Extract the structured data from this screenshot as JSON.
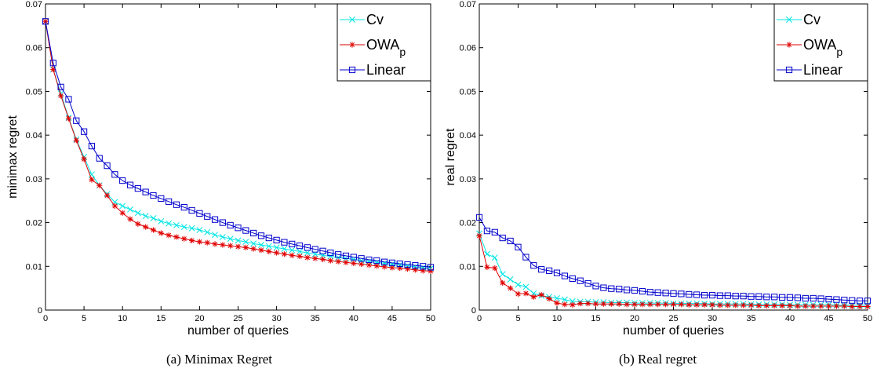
{
  "chart_data": [
    {
      "type": "line",
      "caption": "(a) Minimax Regret",
      "xlabel": "number of queries",
      "ylabel": "minimax regret",
      "xlim": [
        0,
        50
      ],
      "ylim": [
        0,
        0.07
      ],
      "xticks": [
        "0",
        "5",
        "10",
        "15",
        "20",
        "25",
        "30",
        "35",
        "40",
        "45",
        "50"
      ],
      "yticks": [
        "0",
        "0.01",
        "0.02",
        "0.03",
        "0.04",
        "0.05",
        "0.06",
        "0.07"
      ],
      "grid": false,
      "legend_position": "top-right",
      "x": [
        0,
        1,
        2,
        3,
        4,
        5,
        6,
        7,
        8,
        9,
        10,
        11,
        12,
        13,
        14,
        15,
        16,
        17,
        18,
        19,
        20,
        21,
        22,
        23,
        24,
        25,
        26,
        27,
        28,
        29,
        30,
        31,
        32,
        33,
        34,
        35,
        36,
        37,
        38,
        39,
        40,
        41,
        42,
        43,
        44,
        45,
        46,
        47,
        48,
        49,
        50
      ],
      "series": [
        {
          "name": "Cv",
          "color": "#00e5e5",
          "marker": "x",
          "values": [
            0.066,
            0.055,
            0.0495,
            0.044,
            0.039,
            0.035,
            0.031,
            0.0285,
            0.0265,
            0.0247,
            0.0238,
            0.023,
            0.0222,
            0.0215,
            0.021,
            0.0203,
            0.0198,
            0.0194,
            0.019,
            0.0187,
            0.0183,
            0.0178,
            0.0172,
            0.0167,
            0.0163,
            0.0159,
            0.0156,
            0.0152,
            0.0149,
            0.0146,
            0.0143,
            0.014,
            0.0137,
            0.0134,
            0.0131,
            0.0128,
            0.0125,
            0.0123,
            0.012,
            0.0118,
            0.0116,
            0.0113,
            0.0111,
            0.0109,
            0.0107,
            0.0105,
            0.0103,
            0.0101,
            0.0099,
            0.0097,
            0.0095
          ]
        },
        {
          "name": "OWA",
          "name_sub": "p",
          "color": "#e00000",
          "marker": "*",
          "values": [
            0.066,
            0.055,
            0.049,
            0.0438,
            0.0388,
            0.0345,
            0.0298,
            0.0285,
            0.0262,
            0.0238,
            0.0222,
            0.0208,
            0.0197,
            0.019,
            0.0183,
            0.0176,
            0.0171,
            0.0167,
            0.0163,
            0.0159,
            0.0156,
            0.0154,
            0.0151,
            0.0149,
            0.0147,
            0.0145,
            0.0143,
            0.014,
            0.0137,
            0.0134,
            0.0131,
            0.0128,
            0.0125,
            0.0123,
            0.012,
            0.0118,
            0.0116,
            0.0113,
            0.0111,
            0.0109,
            0.0107,
            0.0105,
            0.0103,
            0.0101,
            0.0099,
            0.0097,
            0.0096,
            0.0094,
            0.0092,
            0.009,
            0.0089
          ]
        },
        {
          "name": "Linear",
          "color": "#0000cc",
          "marker": "square",
          "values": [
            0.066,
            0.0565,
            0.051,
            0.0482,
            0.0433,
            0.0408,
            0.0375,
            0.0347,
            0.033,
            0.031,
            0.0296,
            0.0286,
            0.0278,
            0.027,
            0.0262,
            0.0255,
            0.0248,
            0.0241,
            0.0235,
            0.0228,
            0.0221,
            0.0214,
            0.0207,
            0.02,
            0.0194,
            0.0188,
            0.0182,
            0.0176,
            0.017,
            0.0165,
            0.016,
            0.0155,
            0.0151,
            0.0147,
            0.0143,
            0.0139,
            0.0135,
            0.0131,
            0.0127,
            0.0124,
            0.0121,
            0.0118,
            0.0115,
            0.0113,
            0.011,
            0.0108,
            0.0106,
            0.0104,
            0.0102,
            0.01,
            0.0098
          ]
        }
      ]
    },
    {
      "type": "line",
      "caption": "(b) Real regret",
      "xlabel": "number of queries",
      "ylabel": "real regret",
      "xlim": [
        0,
        50
      ],
      "ylim": [
        0,
        0.07
      ],
      "xticks": [
        "0",
        "5",
        "10",
        "15",
        "20",
        "25",
        "30",
        "35",
        "40",
        "45",
        "50"
      ],
      "yticks": [
        "0",
        "0.01",
        "0.02",
        "0.03",
        "0.04",
        "0.05",
        "0.06",
        "0.07"
      ],
      "grid": false,
      "legend_position": "top-right",
      "x": [
        0,
        1,
        2,
        3,
        4,
        5,
        6,
        7,
        8,
        9,
        10,
        11,
        12,
        13,
        14,
        15,
        16,
        17,
        18,
        19,
        20,
        21,
        22,
        23,
        24,
        25,
        26,
        27,
        28,
        29,
        30,
        31,
        32,
        33,
        34,
        35,
        36,
        37,
        38,
        39,
        40,
        41,
        42,
        43,
        44,
        45,
        46,
        47,
        48,
        49,
        50
      ],
      "series": [
        {
          "name": "Cv",
          "color": "#00e5e5",
          "marker": "x",
          "values": [
            0.0175,
            0.0128,
            0.012,
            0.0082,
            0.007,
            0.0058,
            0.0053,
            0.0038,
            0.0033,
            0.003,
            0.0027,
            0.0024,
            0.002,
            0.0019,
            0.0019,
            0.0018,
            0.0018,
            0.0017,
            0.0017,
            0.0017,
            0.0016,
            0.0016,
            0.0016,
            0.0016,
            0.0016,
            0.0015,
            0.0015,
            0.0015,
            0.0015,
            0.0015,
            0.0014,
            0.0014,
            0.0014,
            0.0014,
            0.0014,
            0.0013,
            0.0013,
            0.0013,
            0.0013,
            0.0013,
            0.0012,
            0.0012,
            0.0012,
            0.0012,
            0.0012,
            0.0012,
            0.0011,
            0.0011,
            0.0011,
            0.0011,
            0.0011
          ]
        },
        {
          "name": "OWA",
          "name_sub": "p",
          "color": "#e00000",
          "marker": "*",
          "values": [
            0.017,
            0.0098,
            0.0096,
            0.0062,
            0.005,
            0.0037,
            0.0038,
            0.003,
            0.0035,
            0.0026,
            0.0016,
            0.0013,
            0.0012,
            0.0015,
            0.0015,
            0.0014,
            0.0014,
            0.0014,
            0.0014,
            0.0013,
            0.0013,
            0.0013,
            0.0013,
            0.0013,
            0.0013,
            0.0013,
            0.0013,
            0.0012,
            0.0012,
            0.0012,
            0.0012,
            0.0011,
            0.0011,
            0.0011,
            0.0011,
            0.0011,
            0.001,
            0.001,
            0.001,
            0.001,
            0.001,
            0.0009,
            0.0009,
            0.0009,
            0.0009,
            0.0009,
            0.0009,
            0.0009,
            0.0008,
            0.0008,
            0.0008
          ]
        },
        {
          "name": "Linear",
          "color": "#0000cc",
          "marker": "square",
          "values": [
            0.0212,
            0.0181,
            0.0178,
            0.0165,
            0.0158,
            0.0144,
            0.0121,
            0.0102,
            0.0093,
            0.009,
            0.0085,
            0.0078,
            0.0072,
            0.0067,
            0.0061,
            0.0055,
            0.0051,
            0.0049,
            0.0048,
            0.0046,
            0.0045,
            0.0043,
            0.0041,
            0.004,
            0.0039,
            0.0038,
            0.0037,
            0.0036,
            0.0035,
            0.0034,
            0.0034,
            0.0033,
            0.0033,
            0.0032,
            0.0032,
            0.0031,
            0.0031,
            0.003,
            0.003,
            0.0029,
            0.0029,
            0.0028,
            0.0027,
            0.0027,
            0.0026,
            0.0025,
            0.0024,
            0.0023,
            0.0022,
            0.0021,
            0.0021
          ]
        }
      ]
    }
  ]
}
